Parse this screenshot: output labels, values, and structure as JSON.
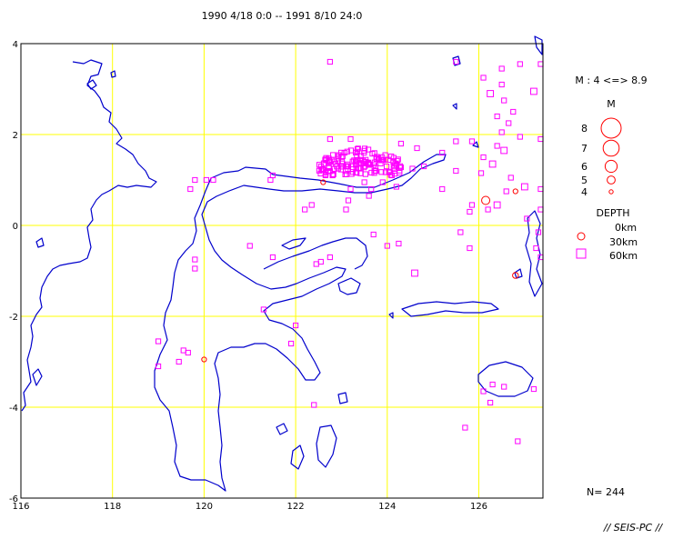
{
  "title": "1990 4/18 0:0 -- 1991 8/10 24:0",
  "footer": "// SEIS-PC //",
  "count_label": "N= 244",
  "colors": {
    "coast": "#0000cc",
    "grid": "#ffff00",
    "deep": "#ff00ff",
    "shallow": "#ff0000",
    "frame": "#000000"
  },
  "map": {
    "lon_range": [
      116,
      127.4
    ],
    "lat_range": [
      -6,
      4
    ],
    "x_ticks": [
      {
        "v": 116,
        "label": "116"
      },
      {
        "v": 118,
        "label": "118"
      },
      {
        "v": 120,
        "label": "120"
      },
      {
        "v": 122,
        "label": "122"
      },
      {
        "v": 124,
        "label": "124"
      },
      {
        "v": 126,
        "label": "126"
      }
    ],
    "y_ticks": [
      {
        "v": 4,
        "label": "4"
      },
      {
        "v": 2,
        "label": "2"
      },
      {
        "v": 0,
        "label": "0"
      },
      {
        "v": -2,
        "label": "-2"
      },
      {
        "v": -4,
        "label": "-4"
      },
      {
        "v": -6,
        "label": "-6"
      }
    ]
  },
  "legend": {
    "magnitude_range": "M : 4 <=> 8.9",
    "magnitude_title": "M",
    "magnitudes": [
      {
        "label": "8",
        "m": 8
      },
      {
        "label": "7",
        "m": 7
      },
      {
        "label": "6",
        "m": 6
      },
      {
        "label": "5",
        "m": 5
      },
      {
        "label": "4",
        "m": 4
      }
    ],
    "depth_title": "DEPTH",
    "depths": [
      {
        "label": "0km",
        "shape": "circle"
      },
      {
        "label": "30km",
        "shape": "circle"
      },
      {
        "label": "60km",
        "shape": "square"
      }
    ]
  },
  "events": [
    {
      "lon": 122.75,
      "lat": 3.6,
      "d": "deep",
      "s": 1
    },
    {
      "lon": 125.5,
      "lat": 3.6,
      "d": "deep",
      "s": 1
    },
    {
      "lon": 126.5,
      "lat": 3.45,
      "d": "deep",
      "s": 1
    },
    {
      "lon": 126.9,
      "lat": 3.55,
      "d": "deep",
      "s": 1
    },
    {
      "lon": 127.35,
      "lat": 3.55,
      "d": "deep",
      "s": 1
    },
    {
      "lon": 126.1,
      "lat": 3.25,
      "d": "deep",
      "s": 1
    },
    {
      "lon": 126.5,
      "lat": 3.1,
      "d": "deep",
      "s": 1
    },
    {
      "lon": 126.25,
      "lat": 2.9,
      "d": "deep",
      "s": 2
    },
    {
      "lon": 127.2,
      "lat": 2.95,
      "d": "deep",
      "s": 2
    },
    {
      "lon": 126.55,
      "lat": 2.75,
      "d": "deep",
      "s": 1
    },
    {
      "lon": 126.75,
      "lat": 2.5,
      "d": "deep",
      "s": 1
    },
    {
      "lon": 126.4,
      "lat": 2.4,
      "d": "deep",
      "s": 1
    },
    {
      "lon": 126.65,
      "lat": 2.25,
      "d": "deep",
      "s": 1
    },
    {
      "lon": 126.5,
      "lat": 2.05,
      "d": "deep",
      "s": 1
    },
    {
      "lon": 126.9,
      "lat": 1.95,
      "d": "deep",
      "s": 1
    },
    {
      "lon": 127.35,
      "lat": 1.9,
      "d": "deep",
      "s": 1
    },
    {
      "lon": 125.5,
      "lat": 1.85,
      "d": "deep",
      "s": 1
    },
    {
      "lon": 125.85,
      "lat": 1.85,
      "d": "deep",
      "s": 1
    },
    {
      "lon": 126.4,
      "lat": 1.75,
      "d": "deep",
      "s": 1
    },
    {
      "lon": 126.55,
      "lat": 1.65,
      "d": "deep",
      "s": 2
    },
    {
      "lon": 125.2,
      "lat": 1.6,
      "d": "deep",
      "s": 1
    },
    {
      "lon": 126.1,
      "lat": 1.5,
      "d": "deep",
      "s": 1
    },
    {
      "lon": 126.3,
      "lat": 1.35,
      "d": "deep",
      "s": 2
    },
    {
      "lon": 125.5,
      "lat": 1.2,
      "d": "deep",
      "s": 1
    },
    {
      "lon": 126.05,
      "lat": 1.15,
      "d": "deep",
      "s": 1
    },
    {
      "lon": 126.7,
      "lat": 1.05,
      "d": "deep",
      "s": 1
    },
    {
      "lon": 127.0,
      "lat": 0.85,
      "d": "deep",
      "s": 2
    },
    {
      "lon": 125.2,
      "lat": 0.8,
      "d": "deep",
      "s": 1
    },
    {
      "lon": 126.6,
      "lat": 0.75,
      "d": "deep",
      "s": 1
    },
    {
      "lon": 127.35,
      "lat": 0.8,
      "d": "deep",
      "s": 1
    },
    {
      "lon": 126.15,
      "lat": 0.55,
      "d": "shallow",
      "s": 3
    },
    {
      "lon": 126.8,
      "lat": 0.75,
      "d": "shallow",
      "s": 1
    },
    {
      "lon": 125.85,
      "lat": 0.45,
      "d": "deep",
      "s": 1
    },
    {
      "lon": 126.4,
      "lat": 0.45,
      "d": "deep",
      "s": 2
    },
    {
      "lon": 126.2,
      "lat": 0.35,
      "d": "deep",
      "s": 1
    },
    {
      "lon": 125.8,
      "lat": 0.3,
      "d": "deep",
      "s": 1
    },
    {
      "lon": 127.05,
      "lat": 0.15,
      "d": "deep",
      "s": 1
    },
    {
      "lon": 127.35,
      "lat": 0.35,
      "d": "deep",
      "s": 1
    },
    {
      "lon": 127.3,
      "lat": -0.15,
      "d": "deep",
      "s": 1
    },
    {
      "lon": 127.25,
      "lat": -0.5,
      "d": "deep",
      "s": 1
    },
    {
      "lon": 127.35,
      "lat": -0.7,
      "d": "deep",
      "s": 1
    },
    {
      "lon": 126.8,
      "lat": -1.1,
      "d": "shallow",
      "s": 2
    },
    {
      "lon": 125.8,
      "lat": -0.5,
      "d": "deep",
      "s": 1
    },
    {
      "lon": 125.6,
      "lat": -0.15,
      "d": "deep",
      "s": 1
    },
    {
      "lon": 124.6,
      "lat": -1.05,
      "d": "deep",
      "s": 2
    },
    {
      "lon": 124.0,
      "lat": -0.45,
      "d": "deep",
      "s": 1
    },
    {
      "lon": 124.25,
      "lat": -0.4,
      "d": "deep",
      "s": 1
    },
    {
      "lon": 123.7,
      "lat": -0.2,
      "d": "deep",
      "s": 1
    },
    {
      "lon": 122.75,
      "lat": -0.7,
      "d": "deep",
      "s": 1
    },
    {
      "lon": 122.55,
      "lat": -0.8,
      "d": "deep",
      "s": 1
    },
    {
      "lon": 122.45,
      "lat": -0.85,
      "d": "deep",
      "s": 1
    },
    {
      "lon": 121.5,
      "lat": -0.7,
      "d": "deep",
      "s": 1
    },
    {
      "lon": 121.0,
      "lat": -0.45,
      "d": "deep",
      "s": 1
    },
    {
      "lon": 119.8,
      "lat": -0.75,
      "d": "deep",
      "s": 1
    },
    {
      "lon": 119.8,
      "lat": -0.95,
      "d": "deep",
      "s": 1
    },
    {
      "lon": 119.7,
      "lat": 0.8,
      "d": "deep",
      "s": 1
    },
    {
      "lon": 119.8,
      "lat": 1.0,
      "d": "deep",
      "s": 1
    },
    {
      "lon": 120.05,
      "lat": 1.0,
      "d": "deep",
      "s": 1
    },
    {
      "lon": 120.2,
      "lat": 1.0,
      "d": "deep",
      "s": 1
    },
    {
      "lon": 121.5,
      "lat": 1.1,
      "d": "deep",
      "s": 1
    },
    {
      "lon": 121.45,
      "lat": 1.0,
      "d": "deep",
      "s": 1
    },
    {
      "lon": 122.2,
      "lat": 0.35,
      "d": "deep",
      "s": 1
    },
    {
      "lon": 122.35,
      "lat": 0.45,
      "d": "deep",
      "s": 1
    },
    {
      "lon": 123.1,
      "lat": 0.35,
      "d": "deep",
      "s": 1
    },
    {
      "lon": 123.15,
      "lat": 0.55,
      "d": "deep",
      "s": 1
    },
    {
      "lon": 123.6,
      "lat": 0.65,
      "d": "deep",
      "s": 1
    },
    {
      "lon": 122.0,
      "lat": -2.2,
      "d": "deep",
      "s": 1
    },
    {
      "lon": 121.9,
      "lat": -2.6,
      "d": "deep",
      "s": 1
    },
    {
      "lon": 119.0,
      "lat": -2.55,
      "d": "deep",
      "s": 1
    },
    {
      "lon": 119.55,
      "lat": -2.75,
      "d": "deep",
      "s": 1
    },
    {
      "lon": 119.65,
      "lat": -2.8,
      "d": "deep",
      "s": 1
    },
    {
      "lon": 119.45,
      "lat": -3.0,
      "d": "deep",
      "s": 1
    },
    {
      "lon": 119.0,
      "lat": -3.1,
      "d": "deep",
      "s": 1
    },
    {
      "lon": 120.0,
      "lat": -2.95,
      "d": "shallow",
      "s": 1
    },
    {
      "lon": 121.3,
      "lat": -1.85,
      "d": "deep",
      "s": 1
    },
    {
      "lon": 122.4,
      "lat": -3.95,
      "d": "deep",
      "s": 1
    },
    {
      "lon": 125.7,
      "lat": -4.45,
      "d": "deep",
      "s": 1
    },
    {
      "lon": 126.85,
      "lat": -4.75,
      "d": "deep",
      "s": 1
    },
    {
      "lon": 126.3,
      "lat": -3.5,
      "d": "deep",
      "s": 1
    },
    {
      "lon": 126.55,
      "lat": -3.55,
      "d": "deep",
      "s": 1
    },
    {
      "lon": 126.1,
      "lat": -3.65,
      "d": "deep",
      "s": 1
    },
    {
      "lon": 126.25,
      "lat": -3.9,
      "d": "deep",
      "s": 1
    },
    {
      "lon": 127.2,
      "lat": -3.6,
      "d": "deep",
      "s": 1
    },
    {
      "lon": 122.75,
      "lat": 1.9,
      "d": "deep",
      "s": 1
    },
    {
      "lon": 123.2,
      "lat": 1.9,
      "d": "deep",
      "s": 1
    },
    {
      "lon": 124.3,
      "lat": 1.8,
      "d": "deep",
      "s": 1
    },
    {
      "lon": 124.65,
      "lat": 1.7,
      "d": "deep",
      "s": 1
    },
    {
      "lon": 124.8,
      "lat": 1.3,
      "d": "deep",
      "s": 1
    },
    {
      "lon": 124.55,
      "lat": 1.25,
      "d": "deep",
      "s": 1
    },
    {
      "lon": 124.1,
      "lat": 1.1,
      "d": "deep",
      "s": 1
    },
    {
      "lon": 123.5,
      "lat": 0.95,
      "d": "deep",
      "s": 1
    },
    {
      "lon": 123.2,
      "lat": 0.8,
      "d": "deep",
      "s": 1
    },
    {
      "lon": 122.6,
      "lat": 0.95,
      "d": "shallow",
      "s": 1
    },
    {
      "lon": 123.9,
      "lat": 0.95,
      "d": "deep",
      "s": 1
    },
    {
      "lon": 124.2,
      "lat": 0.85,
      "d": "deep",
      "s": 1
    },
    {
      "lon": 123.65,
      "lat": 0.8,
      "d": "deep",
      "s": 1
    }
  ],
  "cluster": {
    "lon_min": 122.5,
    "lon_max": 124.35,
    "lat_min": 1.05,
    "lat_max": 1.7,
    "count": 145
  }
}
